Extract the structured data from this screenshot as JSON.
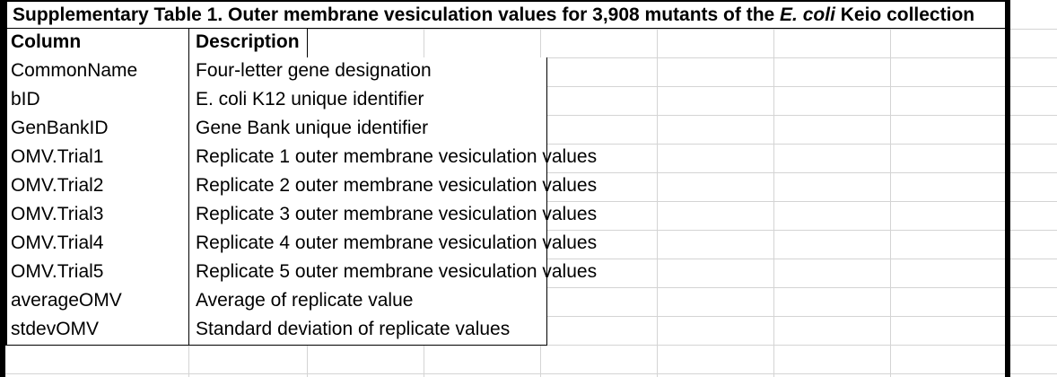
{
  "title": {
    "prefix": "Supplementary Table 1. Outer membrane vesiculation values for 3,908 mutants of the ",
    "italic": "E. coli",
    "suffix": " Keio collection"
  },
  "headers": {
    "column": "Column",
    "description": "Description"
  },
  "rows": [
    {
      "column": "CommonName",
      "description": "Four-letter gene designation"
    },
    {
      "column": "bID",
      "description": "E. coli K12 unique identifier"
    },
    {
      "column": "GenBankID",
      "description": "Gene Bank unique identifier"
    },
    {
      "column": "OMV.Trial1",
      "description": "Replicate 1 outer membrane vesiculation values"
    },
    {
      "column": "OMV.Trial2",
      "description": "Replicate 2 outer membrane vesiculation values"
    },
    {
      "column": "OMV.Trial3",
      "description": "Replicate 3 outer membrane vesiculation values"
    },
    {
      "column": "OMV.Trial4",
      "description": "Replicate 4  outer membrane vesiculation values"
    },
    {
      "column": "OMV.Trial5",
      "description": "Replicate 5 outer membrane vesiculation values"
    },
    {
      "column": "averageOMV",
      "description": "Average of replicate value"
    },
    {
      "column": "stdevOMV",
      "description": "Standard deviation of replicate values"
    }
  ]
}
